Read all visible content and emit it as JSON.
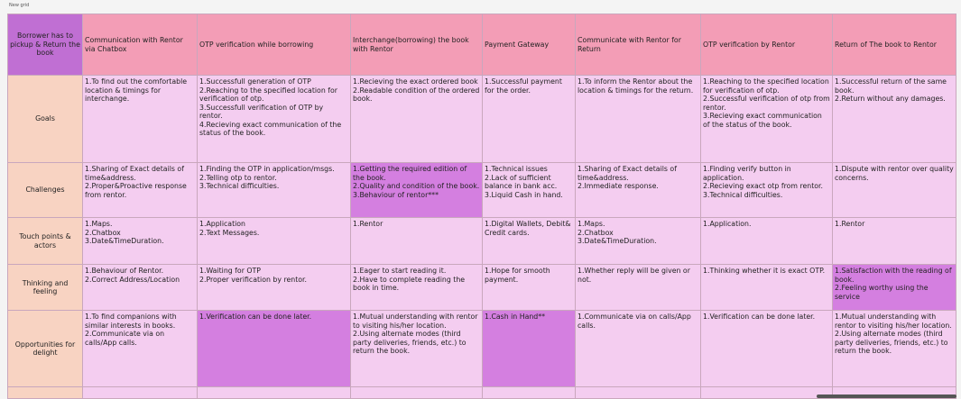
{
  "grid_label": "New grid",
  "corner": "Borrower has to pickup & Return the book",
  "headers": [
    "Communication with Rentor via Chatbox",
    "OTP verification while borrowing",
    "Interchange(borrowing) the book with Rentor",
    "Payment Gateway",
    "Communicate with Rentor for Return",
    "OTP verification by Rentor",
    "Return of The book to Rentor"
  ],
  "rows": [
    {
      "label": "Goals",
      "cells": [
        {
          "lines": [
            "1.To find out the comfortable location &  timings for interchange."
          ],
          "dark": false
        },
        {
          "lines": [
            "1.Successfull generation of OTP",
            "2.Reaching to the specified location for verification of otp.",
            "3.Successfull verification of OTP by rentor.",
            "4.Recieving exact communication of the status of the book."
          ],
          "dark": false
        },
        {
          "lines": [
            "1.Recieving the exact ordered book",
            "2.Readable condition of the ordered book."
          ],
          "dark": false
        },
        {
          "lines": [
            "1.Successful payment for the order."
          ],
          "dark": false
        },
        {
          "lines": [
            "1.To inform the Rentor about the location & timings for the return."
          ],
          "dark": false
        },
        {
          "lines": [
            "1.Reaching to the specified location  for  verification of otp.",
            "2.Successful verification of otp from rentor.",
            "3.Recieving exact communication of the status of the book."
          ],
          "dark": false
        },
        {
          "lines": [
            "1.Successful return of the same book.",
            "2.Return without any damages."
          ],
          "dark": false
        }
      ]
    },
    {
      "label": "Challenges",
      "cells": [
        {
          "lines": [
            "1.Sharing of Exact details of time&address.",
            "2.Proper&Proactive response from rentor."
          ],
          "dark": false
        },
        {
          "lines": [
            "1.Finding the OTP in application/msgs.",
            "2.Telling otp to rentor.",
            "3.Technical difficulties."
          ],
          "dark": false
        },
        {
          "lines": [
            "1.Getting the required edition of the book.",
            "2.Quality and condition of the book.",
            "3.Behaviour of rentor***"
          ],
          "dark": true
        },
        {
          "lines": [
            "1.Technical issues",
            "2.Lack of sufficient balance in bank acc.",
            "3.Liquid Cash in hand."
          ],
          "dark": false
        },
        {
          "lines": [
            "1.Sharing of Exact details of time&address.",
            "2.Immediate response."
          ],
          "dark": false
        },
        {
          "lines": [
            "1.Finding verify button in application.",
            "2.Recieving exact otp from rentor.",
            "3.Technical difficulties."
          ],
          "dark": false
        },
        {
          "lines": [
            "1.Dispute with rentor over quality concerns."
          ],
          "dark": false
        }
      ]
    },
    {
      "label": "Touch points & actors",
      "cells": [
        {
          "lines": [
            "1.Maps.",
            "2.Chatbox",
            "3.Date&TimeDuration."
          ],
          "dark": false
        },
        {
          "lines": [
            "1.Application",
            "2.Text Messages."
          ],
          "dark": false
        },
        {
          "lines": [
            "1.Rentor"
          ],
          "dark": false
        },
        {
          "lines": [
            "1.Digital Wallets, Debit& Credit cards."
          ],
          "dark": false
        },
        {
          "lines": [
            "1.Maps.",
            "2.Chatbox",
            "3.Date&TimeDuration."
          ],
          "dark": false
        },
        {
          "lines": [
            "1.Application."
          ],
          "dark": false
        },
        {
          "lines": [
            "1.Rentor"
          ],
          "dark": false
        }
      ]
    },
    {
      "label": "Thinking and feeling",
      "cells": [
        {
          "lines": [
            "1.Behaviour of Rentor.",
            "2.Correct Address/Location"
          ],
          "dark": false
        },
        {
          "lines": [
            "1.Waiting for OTP",
            "2.Proper verification by rentor."
          ],
          "dark": false
        },
        {
          "lines": [
            "1.Eager to start reading it.",
            "2.Have to complete reading the book in time."
          ],
          "dark": false
        },
        {
          "lines": [
            "1.Hope for smooth payment."
          ],
          "dark": false
        },
        {
          "lines": [
            "1.Whether reply will be given or not."
          ],
          "dark": false
        },
        {
          "lines": [
            "1.Thinking whether it is exact OTP."
          ],
          "dark": false
        },
        {
          "lines": [
            "1.Satisfaction with the reading of book.",
            "2.Feeling worthy using the service"
          ],
          "dark": true
        }
      ]
    },
    {
      "label": "Opportunities for delight",
      "cells": [
        {
          "lines": [
            "1.To find companions with similar interests in books.",
            "2.Communicate via on calls/App calls."
          ],
          "dark": false
        },
        {
          "lines": [
            "1.Verification can be done later."
          ],
          "dark": true
        },
        {
          "lines": [
            "1.Mutual understanding with rentor to visiting his/her location.",
            "2.Using alternate modes (third party deliveries, friends, etc.) to return the book."
          ],
          "dark": false
        },
        {
          "lines": [
            "1.Cash in Hand**"
          ],
          "dark": true
        },
        {
          "lines": [
            "1.Communicate via on calls/App calls."
          ],
          "dark": false
        },
        {
          "lines": [
            "1.Verification can be done later."
          ],
          "dark": false
        },
        {
          "lines": [
            "1.Mutual understanding with rentor to visiting his/her location.",
            "2.Using alternate modes (third party deliveries, friends, etc.) to return the book."
          ],
          "dark": false
        }
      ]
    }
  ],
  "colors": {
    "header_pink": "#f39db6",
    "corner_purple": "#c06fd3",
    "row_label_peach": "#f8d3c2",
    "cell_light": "#f4cdf0",
    "cell_dark": "#d47fe0"
  }
}
